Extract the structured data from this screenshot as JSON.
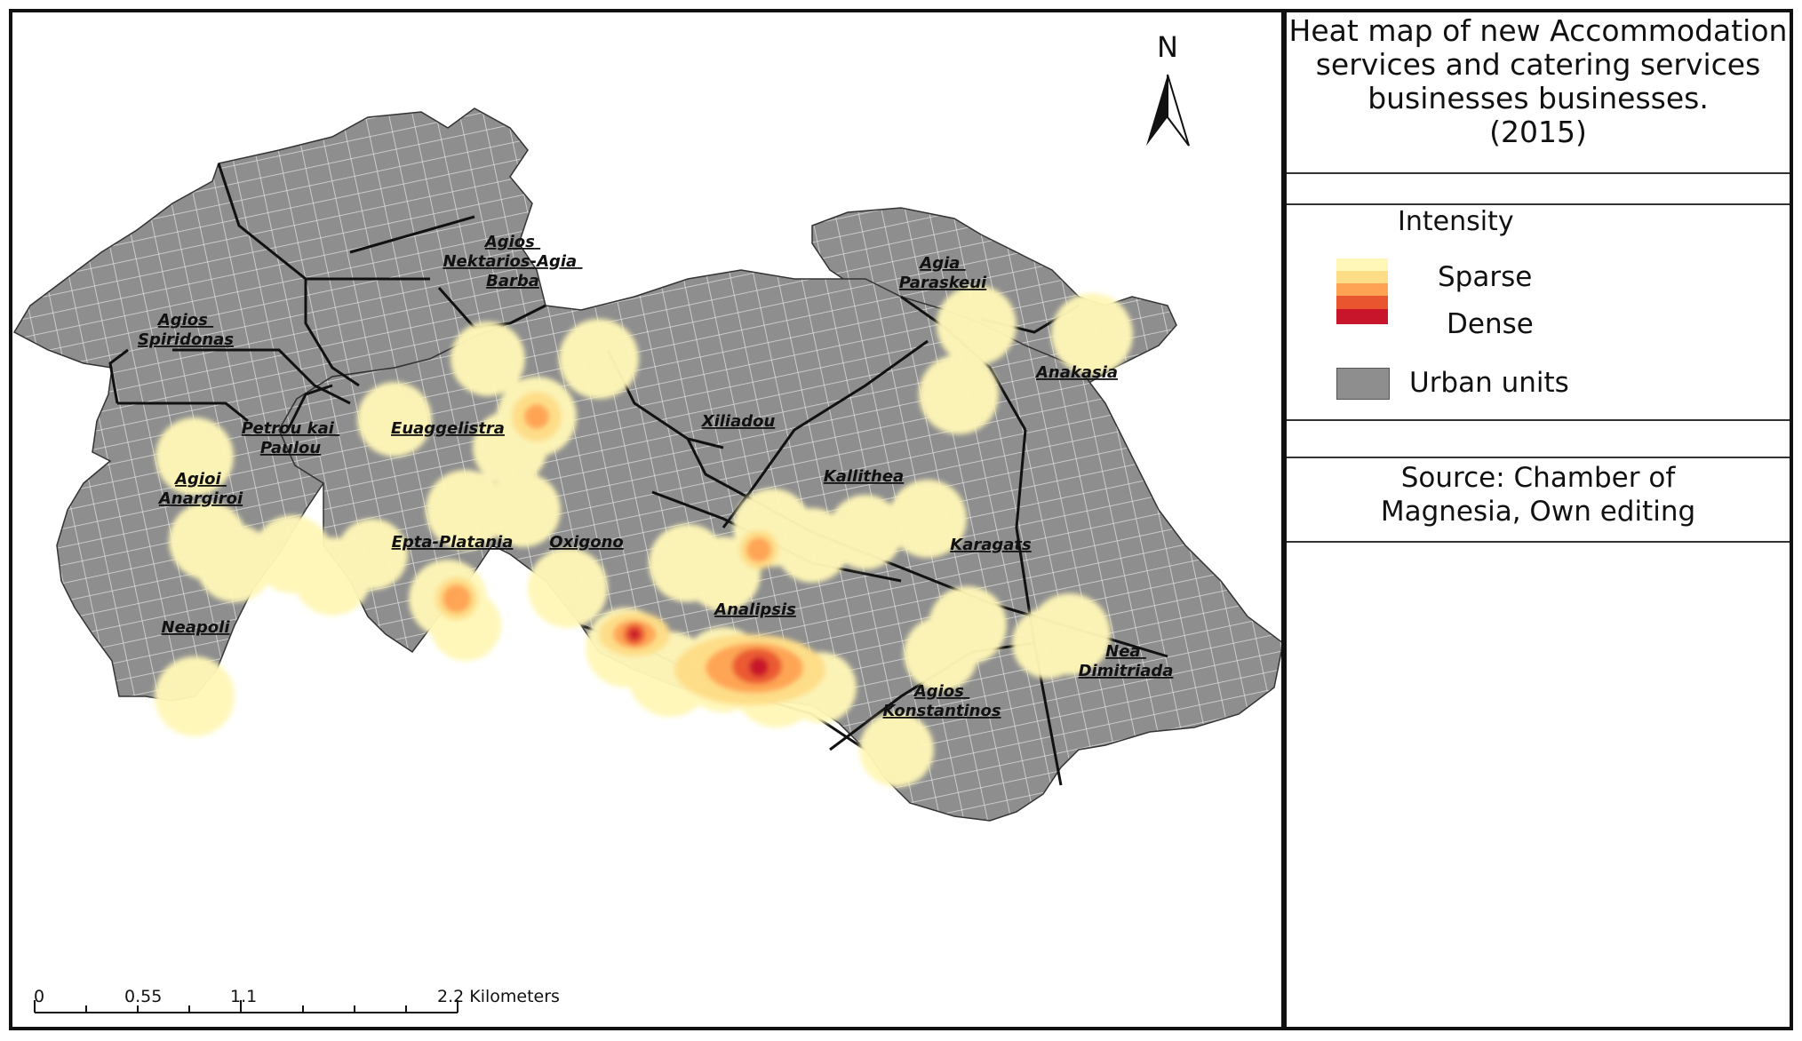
{
  "legend": {
    "title": "Heat map of new Accommodation\nservices and catering services\nbusinesses businesses.\n(2015)",
    "intensity_heading": "Intensity",
    "sparse_label": "Sparse",
    "dense_label": "Dense",
    "ramp_colors": [
      "#fff7b8",
      "#fedd86",
      "#fda353",
      "#e9552f",
      "#c9152b"
    ],
    "urban_units_label": "Urban units",
    "urban_units_color": "#8e8e8e",
    "source": "Source: Chamber of\nMagnesia, Own editing"
  },
  "north_arrow": {
    "label": "N"
  },
  "scale_bar": {
    "labels": [
      "0",
      "0.55",
      "1.1",
      "2.2 Kilometers"
    ]
  },
  "areas": {
    "agios_nektarios": "Agios\nNektarios-Agia\nBarba",
    "agios_spiridonas": "Agios\nSpiridonas",
    "agia_paraskeui": "Agia\nParaskeui",
    "anakasia": "Anakasia",
    "euaggelistra": "Euaggelistra",
    "petrou_kai_paulou": "Petrou kai\nPaulou",
    "xiliadou": "Xiliadou",
    "agioi_anargiroi": "Agioi\nAnargiroi",
    "kallithea": "Kallithea",
    "epta_platania": "Epta-Platania",
    "oxigono": "Oxigono",
    "karagats": "Karagats",
    "analipsis": "Analipsis",
    "neapoli": "Neapoli",
    "nea_dimitriada": "Nea\nDimitriada",
    "agios_konstantinos": "Agios\nKonstantinos"
  },
  "heat_intensity": {
    "sparse_color": "#fff7b8",
    "dense_color": "#c9152b"
  }
}
